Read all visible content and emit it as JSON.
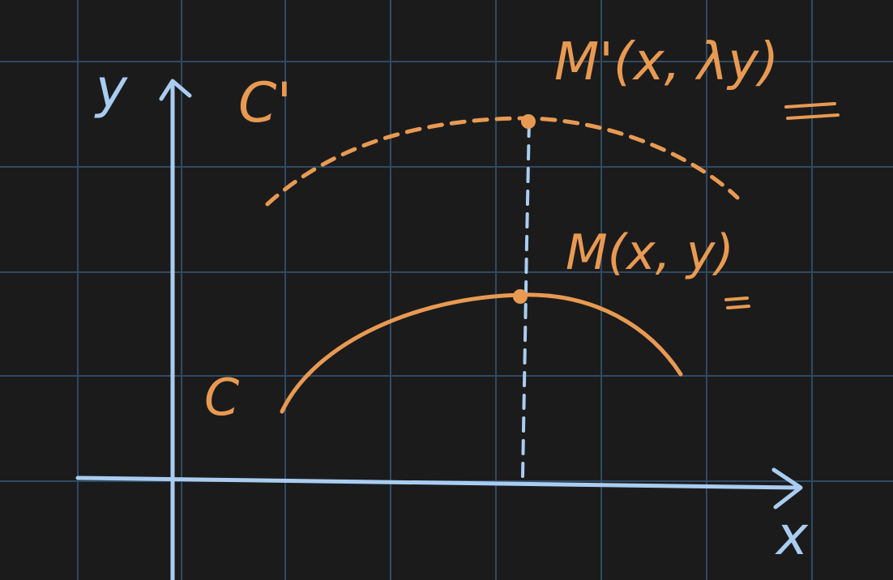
{
  "colors": {
    "background": "#1c1b1c",
    "grid": "#2f4a63",
    "axis": "#a9cdf1",
    "curve": "#e89a52"
  },
  "axes": {
    "x_label": "x",
    "y_label": "y"
  },
  "curves": {
    "original_label": "C",
    "transformed_label": "C'"
  },
  "points": {
    "original": {
      "label": "M(x, y)"
    },
    "transformed": {
      "label": "M'(x, λy)"
    }
  }
}
